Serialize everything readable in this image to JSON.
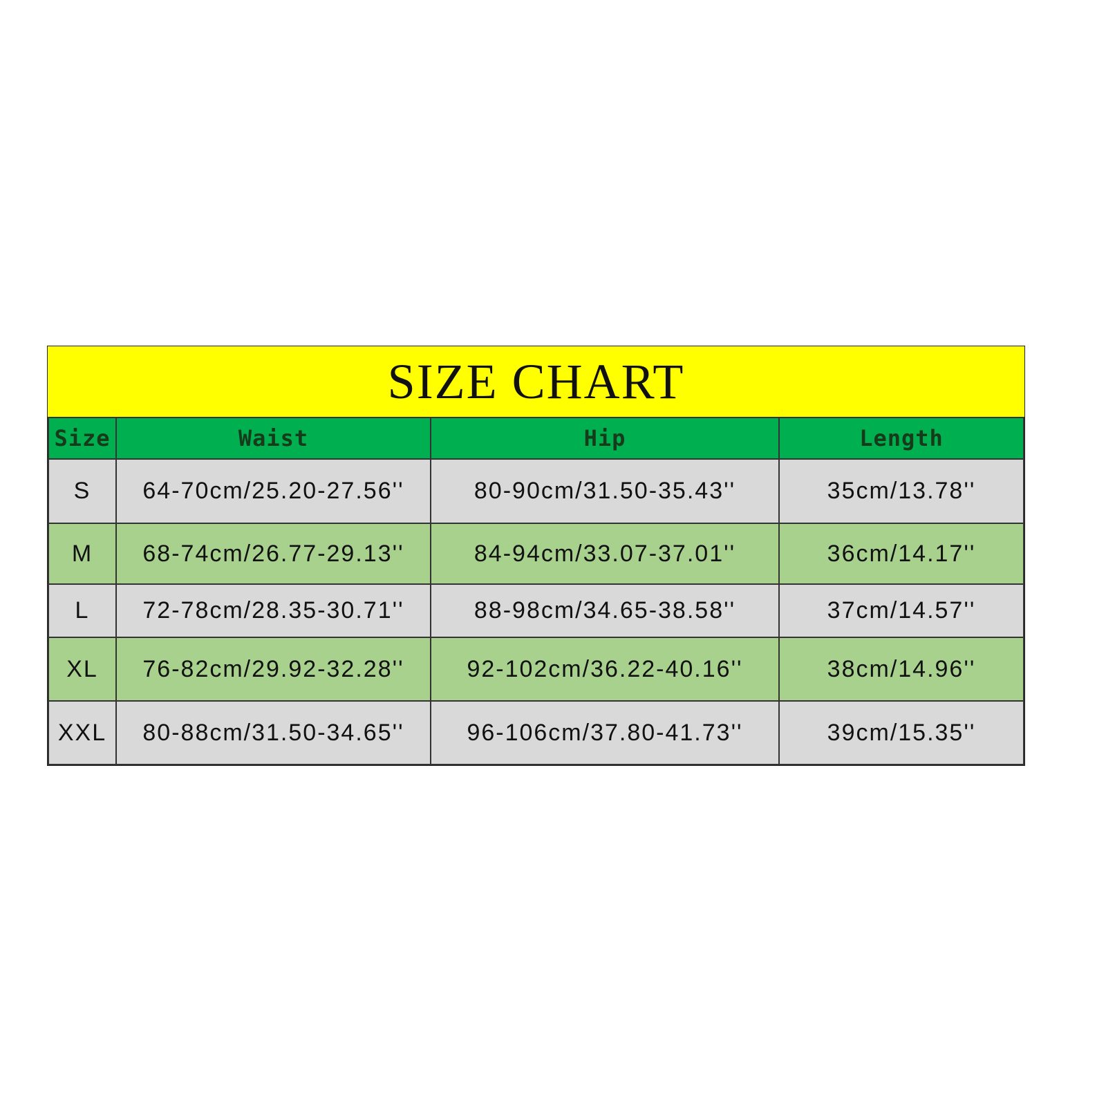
{
  "title": "SIZE CHART",
  "colors": {
    "title_bg": "#ffff00",
    "header_bg": "#00b050",
    "row_gray": "#d9d9d9",
    "row_green": "#a9d18e"
  },
  "headers": [
    "Size",
    "Waist",
    "Hip",
    "Length"
  ],
  "rows": [
    [
      "S",
      "64-70cm/25.20-27.56''",
      "80-90cm/31.50-35.43''",
      "35cm/13.78''"
    ],
    [
      "M",
      "68-74cm/26.77-29.13''",
      "84-94cm/33.07-37.01''",
      "36cm/14.17''"
    ],
    [
      "L",
      "72-78cm/28.35-30.71''",
      "88-98cm/34.65-38.58''",
      "37cm/14.57''"
    ],
    [
      "XL",
      "76-82cm/29.92-32.28''",
      "92-102cm/36.22-40.16''",
      "38cm/14.96''"
    ],
    [
      "XXL",
      "80-88cm/31.50-34.65''",
      "96-106cm/37.80-41.73''",
      "39cm/15.35''"
    ]
  ]
}
